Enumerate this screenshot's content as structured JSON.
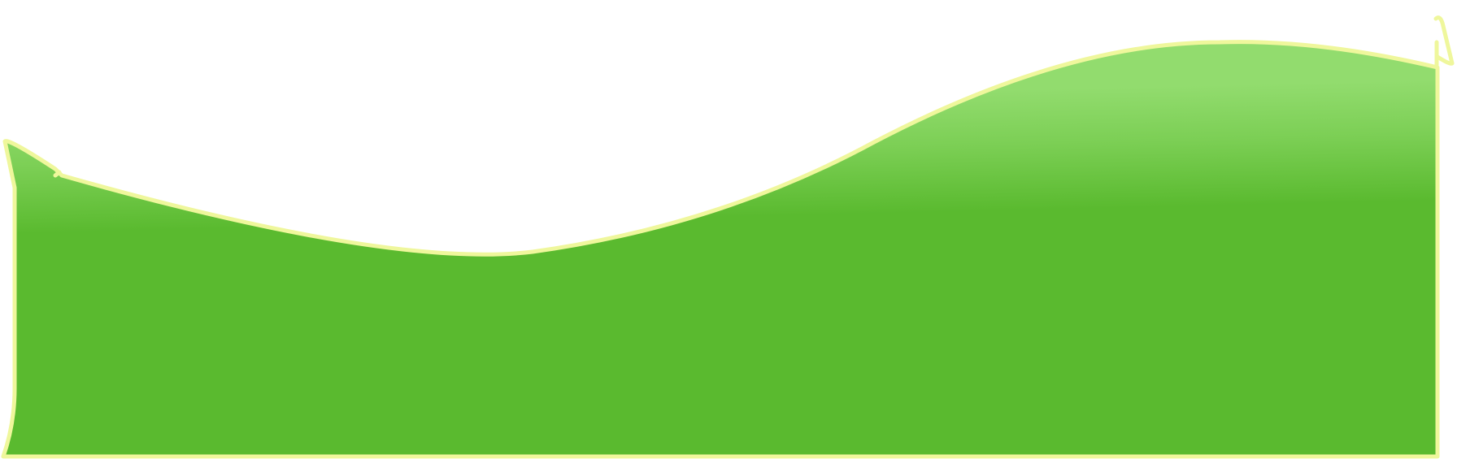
{
  "scene": {
    "background_color": "#ffffff",
    "terrain": {
      "outline_color": "#eff79c",
      "grass_light_color": "#92dc6e",
      "grass_mid_color": "#7ccf55",
      "grass_dark_color": "#5aba2f"
    }
  }
}
